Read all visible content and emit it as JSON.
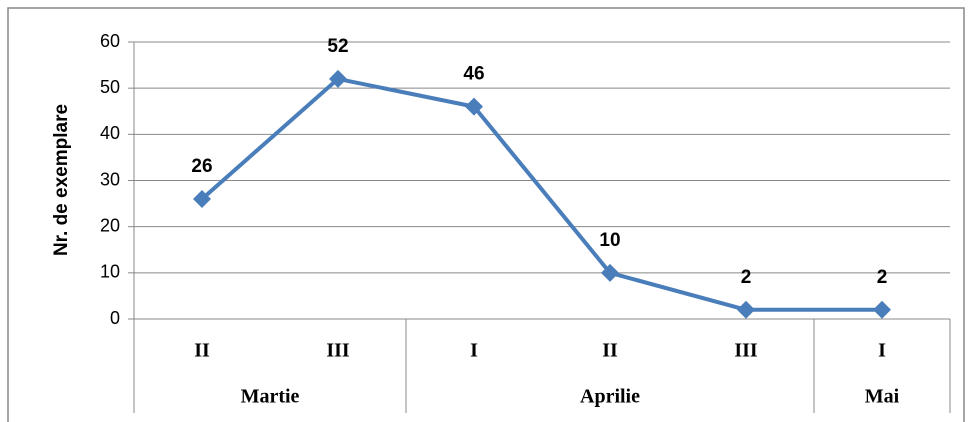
{
  "chart_data": {
    "type": "line",
    "y_axis_label": "Nr. de exemplare",
    "category_groups": [
      {
        "label": "Martie",
        "categories": [
          "II",
          "III"
        ]
      },
      {
        "label": "Aprilie",
        "categories": [
          "I",
          "II",
          "III"
        ]
      },
      {
        "label": "Mai",
        "categories": [
          "I"
        ]
      }
    ],
    "series": [
      {
        "name": "Nr. de exemplare",
        "color": "#4a7ebb",
        "values": [
          26,
          52,
          46,
          10,
          2,
          2
        ]
      }
    ],
    "ylim": [
      0,
      60
    ],
    "yticks": [
      0,
      10,
      20,
      30,
      40,
      50,
      60
    ],
    "grid": true
  }
}
